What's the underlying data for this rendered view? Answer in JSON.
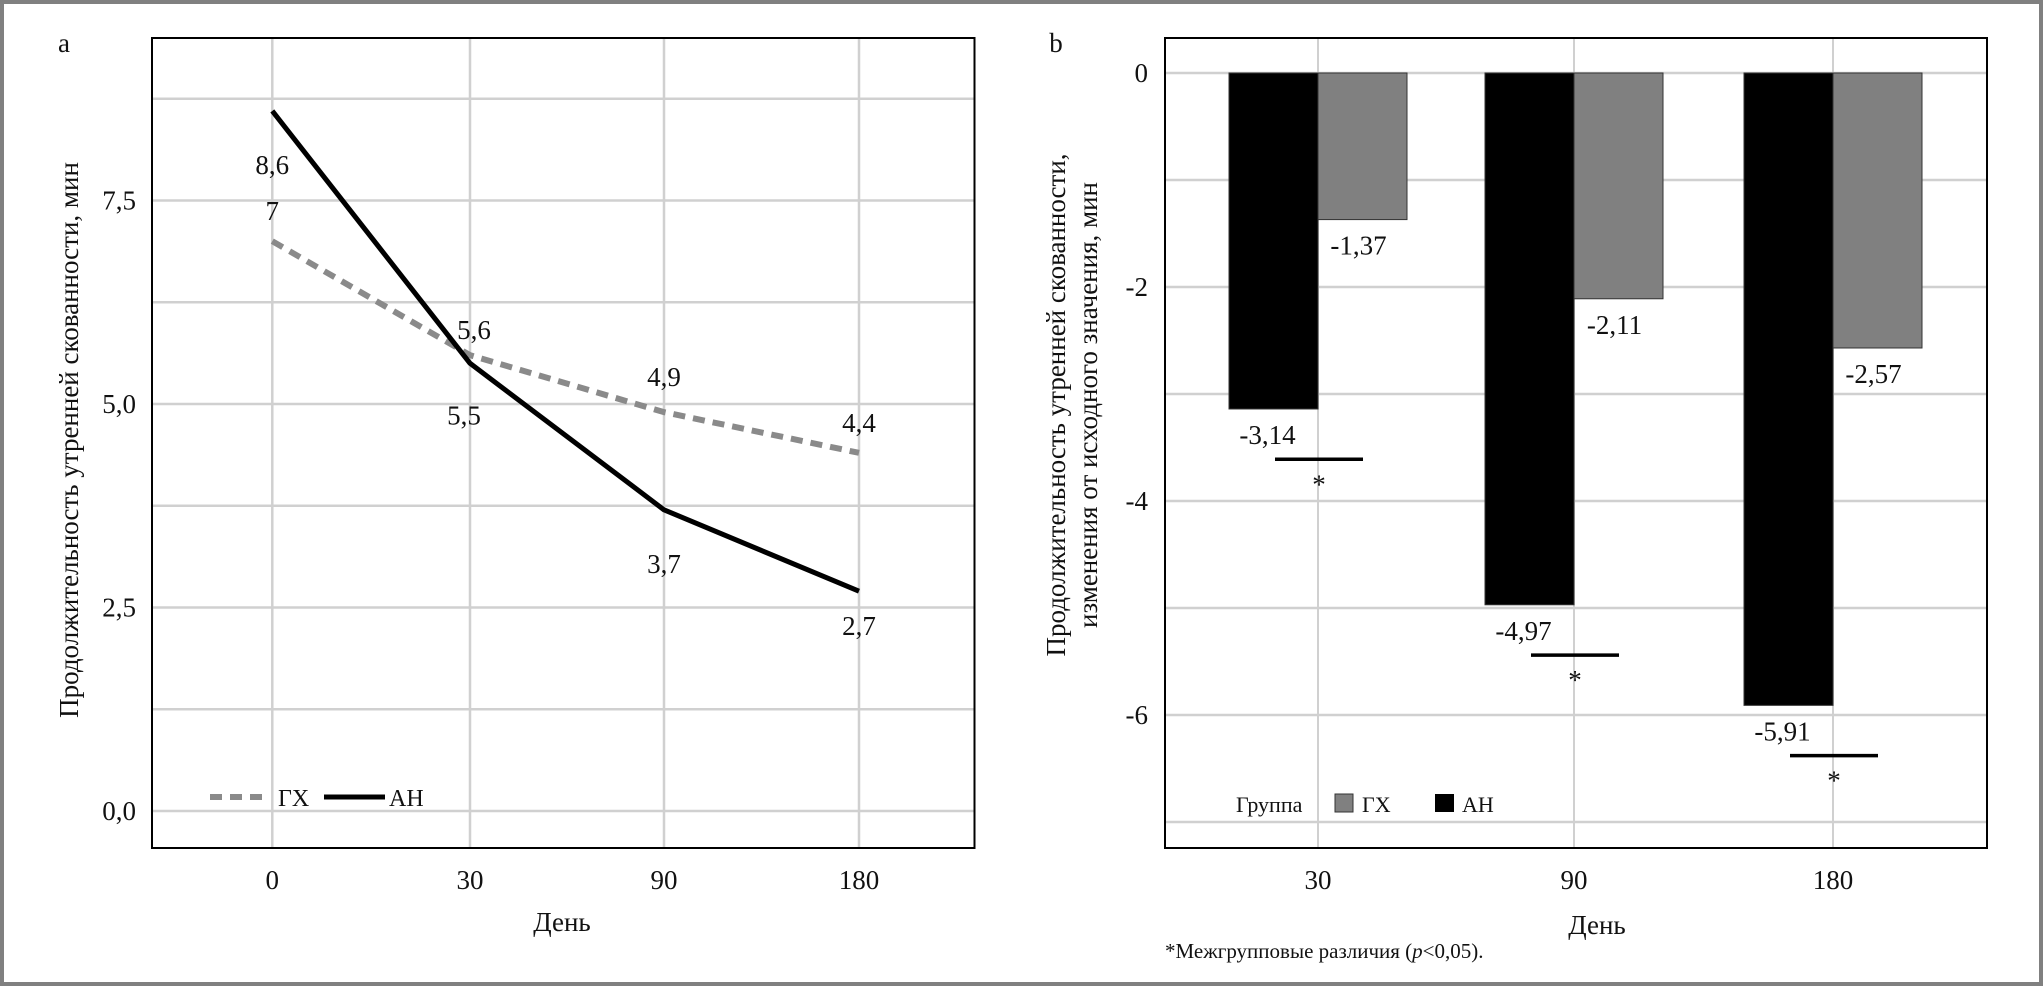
{
  "chart_data": [
    {
      "panel_label": "a",
      "type": "line",
      "categories": [
        "0",
        "30",
        "90",
        "180"
      ],
      "xlabel": "День",
      "ylabel": "Продолжительность утренней скованности, мин",
      "ylim": [
        -0.45,
        9.2
      ],
      "yticks": [
        0,
        2.5,
        5,
        7.5
      ],
      "ytick_labels": [
        "0,0",
        "2,5",
        "5,0",
        "7,5"
      ],
      "minor_grid_step": 1.25,
      "grid": true,
      "legend_position": "bottom-left",
      "series": [
        {
          "name": "ГХ",
          "values": [
            7.0,
            5.6,
            4.9,
            4.4
          ],
          "labels": [
            "7",
            "5,6",
            "4,9",
            "4,4"
          ],
          "color": "#8a8a8a",
          "style": "dashed"
        },
        {
          "name": "АН",
          "values": [
            8.6,
            5.5,
            3.7,
            2.7
          ],
          "labels": [
            "8,6",
            "5,5",
            "3,7",
            "2,7"
          ],
          "color": "#000000",
          "style": "solid"
        }
      ]
    },
    {
      "panel_label": "b",
      "type": "bar",
      "categories": [
        "30",
        "90",
        "180"
      ],
      "xlabel": "День",
      "ylabel": [
        "Продолжительность утренней скованности,",
        "изменения от исходного значения, мин"
      ],
      "ylim": [
        -7.23,
        0.32
      ],
      "yticks": [
        0,
        -2,
        -4,
        -6
      ],
      "ytick_labels": [
        "0",
        "-2",
        "-4",
        "-6"
      ],
      "minor_grid_step": 1,
      "grid": true,
      "legend_title": "Группа",
      "legend_position": "bottom-left",
      "series": [
        {
          "name": "АН",
          "values": [
            -3.14,
            -4.97,
            -5.91
          ],
          "labels": [
            "-3,14",
            "-4,97",
            "-5,91"
          ],
          "color": "#000000"
        },
        {
          "name": "ГХ",
          "values": [
            -1.37,
            -2.11,
            -2.57
          ],
          "labels": [
            "-1,37",
            "-2,11",
            "-2,57"
          ],
          "color": "#808080"
        }
      ],
      "significance_marker": "*",
      "significant_categories": [
        "30",
        "90",
        "180"
      ],
      "footnote": {
        "prefix": "*Межгрупповые различия (",
        "italic": "p",
        "suffix": "<0,05)."
      }
    }
  ]
}
